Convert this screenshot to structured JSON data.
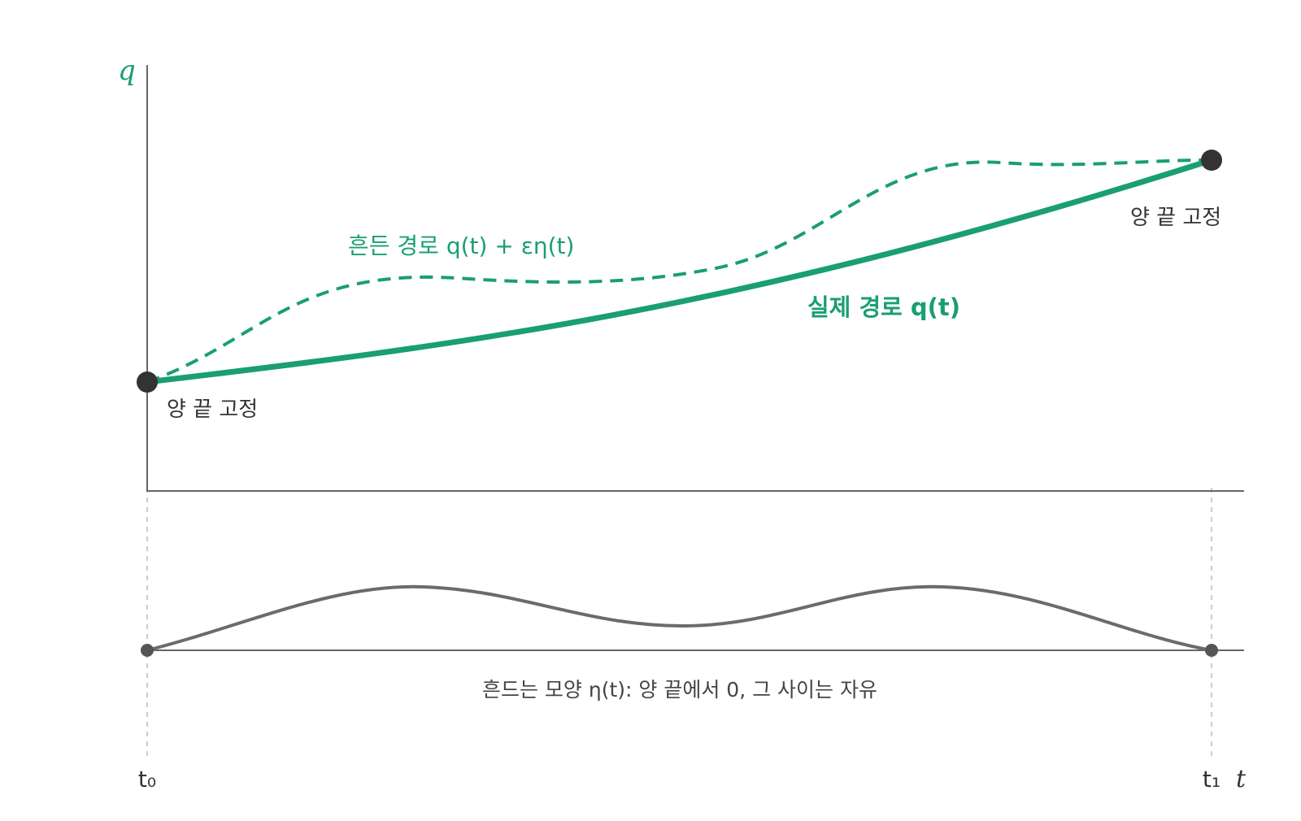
{
  "axes": {
    "y_label": "q",
    "x_label": "t",
    "t_start_label": "t₀",
    "t_end_label": "t₁"
  },
  "labels": {
    "varied_path": "흔든 경로 q(t) + εη(t)",
    "actual_path": "실제 경로 q(t)",
    "fixed_start": "양 끝 고정",
    "fixed_end": "양 끝 고정",
    "eta_caption": "흔드는 모양 η(t): 양 끝에서 0, 그 사이는 자유"
  },
  "colors": {
    "green": "#1a9e73",
    "dark": "#333333",
    "axis": "#666666",
    "eta_curve": "#6b6b6b",
    "guide": "#bbbbbb"
  }
}
